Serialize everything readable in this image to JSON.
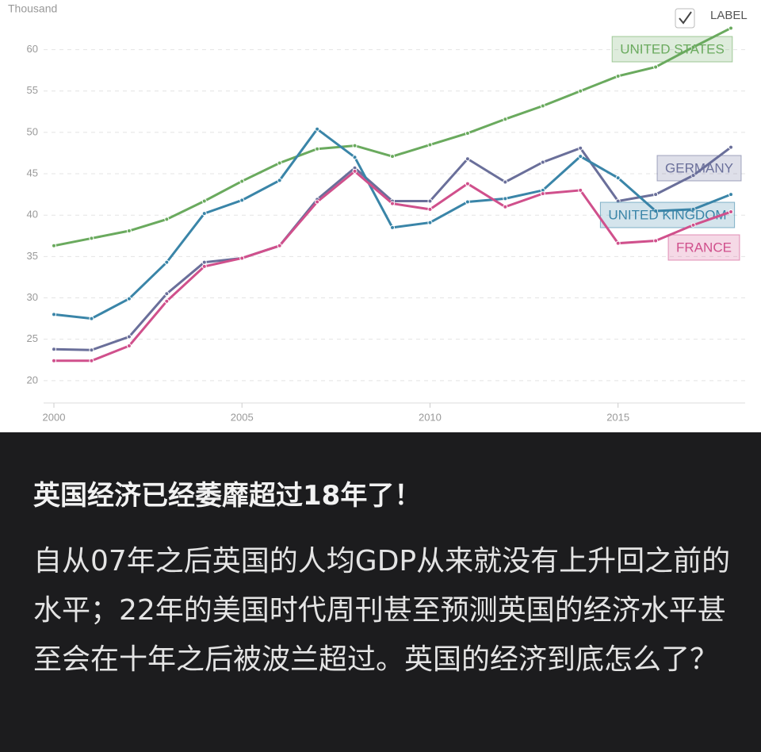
{
  "chart_data": {
    "type": "line",
    "y_axis_label": "Thousand",
    "toggle_label": "LABEL",
    "x": [
      2000,
      2001,
      2002,
      2003,
      2004,
      2005,
      2006,
      2007,
      2008,
      2009,
      2010,
      2011,
      2012,
      2013,
      2014,
      2015,
      2016,
      2017,
      2018
    ],
    "xlim": [
      2000,
      2018
    ],
    "xticks": [
      2000,
      2005,
      2010,
      2015
    ],
    "ylim": [
      17.3,
      66
    ],
    "yticks": [
      20,
      25,
      30,
      35,
      40,
      45,
      50,
      55,
      60
    ],
    "grid": true,
    "series": [
      {
        "name": "UNITED STATES",
        "color": "#6aaa5e",
        "values": [
          36.3,
          37.2,
          38.1,
          39.5,
          41.7,
          44.1,
          46.3,
          48.0,
          48.4,
          47.1,
          48.5,
          49.9,
          51.6,
          53.2,
          55.0,
          56.8,
          57.9,
          60.3,
          62.6
        ]
      },
      {
        "name": "GERMANY",
        "color": "#6a6f9a",
        "values": [
          23.8,
          23.7,
          25.3,
          30.5,
          34.3,
          34.8,
          36.3,
          41.9,
          45.7,
          41.7,
          41.7,
          46.8,
          44.0,
          46.4,
          48.1,
          41.7,
          42.5,
          44.8,
          48.2
        ]
      },
      {
        "name": "UNITED KINGDOM",
        "color": "#3a85a8",
        "values": [
          28.0,
          27.5,
          29.9,
          34.3,
          40.2,
          41.8,
          44.2,
          50.4,
          47.0,
          38.5,
          39.1,
          41.6,
          42.0,
          43.0,
          47.1,
          44.5,
          40.5,
          40.7,
          42.5
        ]
      },
      {
        "name": "FRANCE",
        "color": "#d0508c",
        "values": [
          22.4,
          22.4,
          24.2,
          29.6,
          33.8,
          34.8,
          36.3,
          41.6,
          45.3,
          41.4,
          40.7,
          43.8,
          41.0,
          42.6,
          43.0,
          36.6,
          36.9,
          38.8,
          40.4
        ]
      }
    ]
  },
  "post": {
    "title": "英国经济已经萎靡超过18年了！",
    "body": "自从07年之后英国的人均GDP从来就没有上升回之前的水平；22年的美国时代周刊甚至预测英国的经济水平甚至会在十年之后被波兰超过。英国的经济到底怎么了？"
  }
}
